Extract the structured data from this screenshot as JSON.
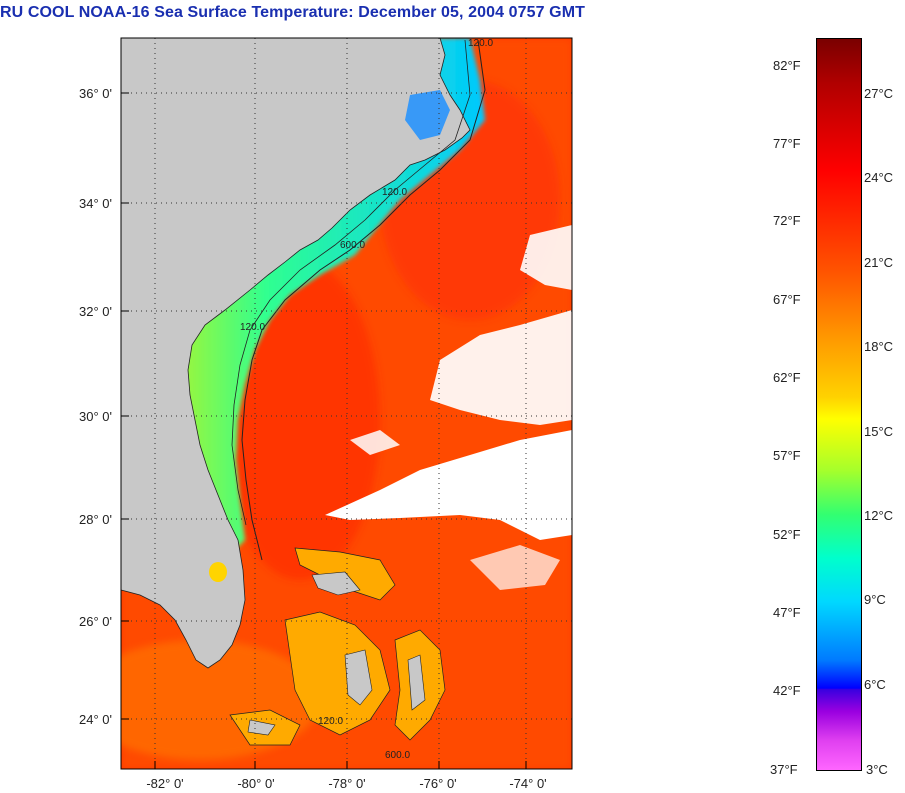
{
  "title": "RU COOL  NOAA-16  Sea Surface Temperature:  December 05, 2004 0757 GMT",
  "map": {
    "lat_labels": [
      "36° 0'",
      "34° 0'",
      "32° 0'",
      "30° 0'",
      "28° 0'",
      "26° 0'",
      "24° 0'"
    ],
    "lon_labels": [
      "-82° 0'",
      "-80° 0'",
      "-78° 0'",
      "-76° 0'",
      "-74° 0'"
    ],
    "contour_labels": [
      "120.0",
      "120.0",
      "600.0",
      "120.0",
      "120.0",
      "600.0"
    ],
    "colors": {
      "land": "#c8c8c8",
      "ocean_warm": "#ff3300",
      "shelf_cool": "#00e0ff",
      "cloud": "#ffffff"
    }
  },
  "colorbar": {
    "fahrenheit": [
      "82°F",
      "77°F",
      "72°F",
      "67°F",
      "62°F",
      "57°F",
      "52°F",
      "47°F",
      "42°F",
      "37°F"
    ],
    "celsius": [
      "27°C",
      "24°C",
      "21°C",
      "18°C",
      "15°C",
      "12°C",
      "9°C",
      "6°C",
      "3°C"
    ]
  }
}
